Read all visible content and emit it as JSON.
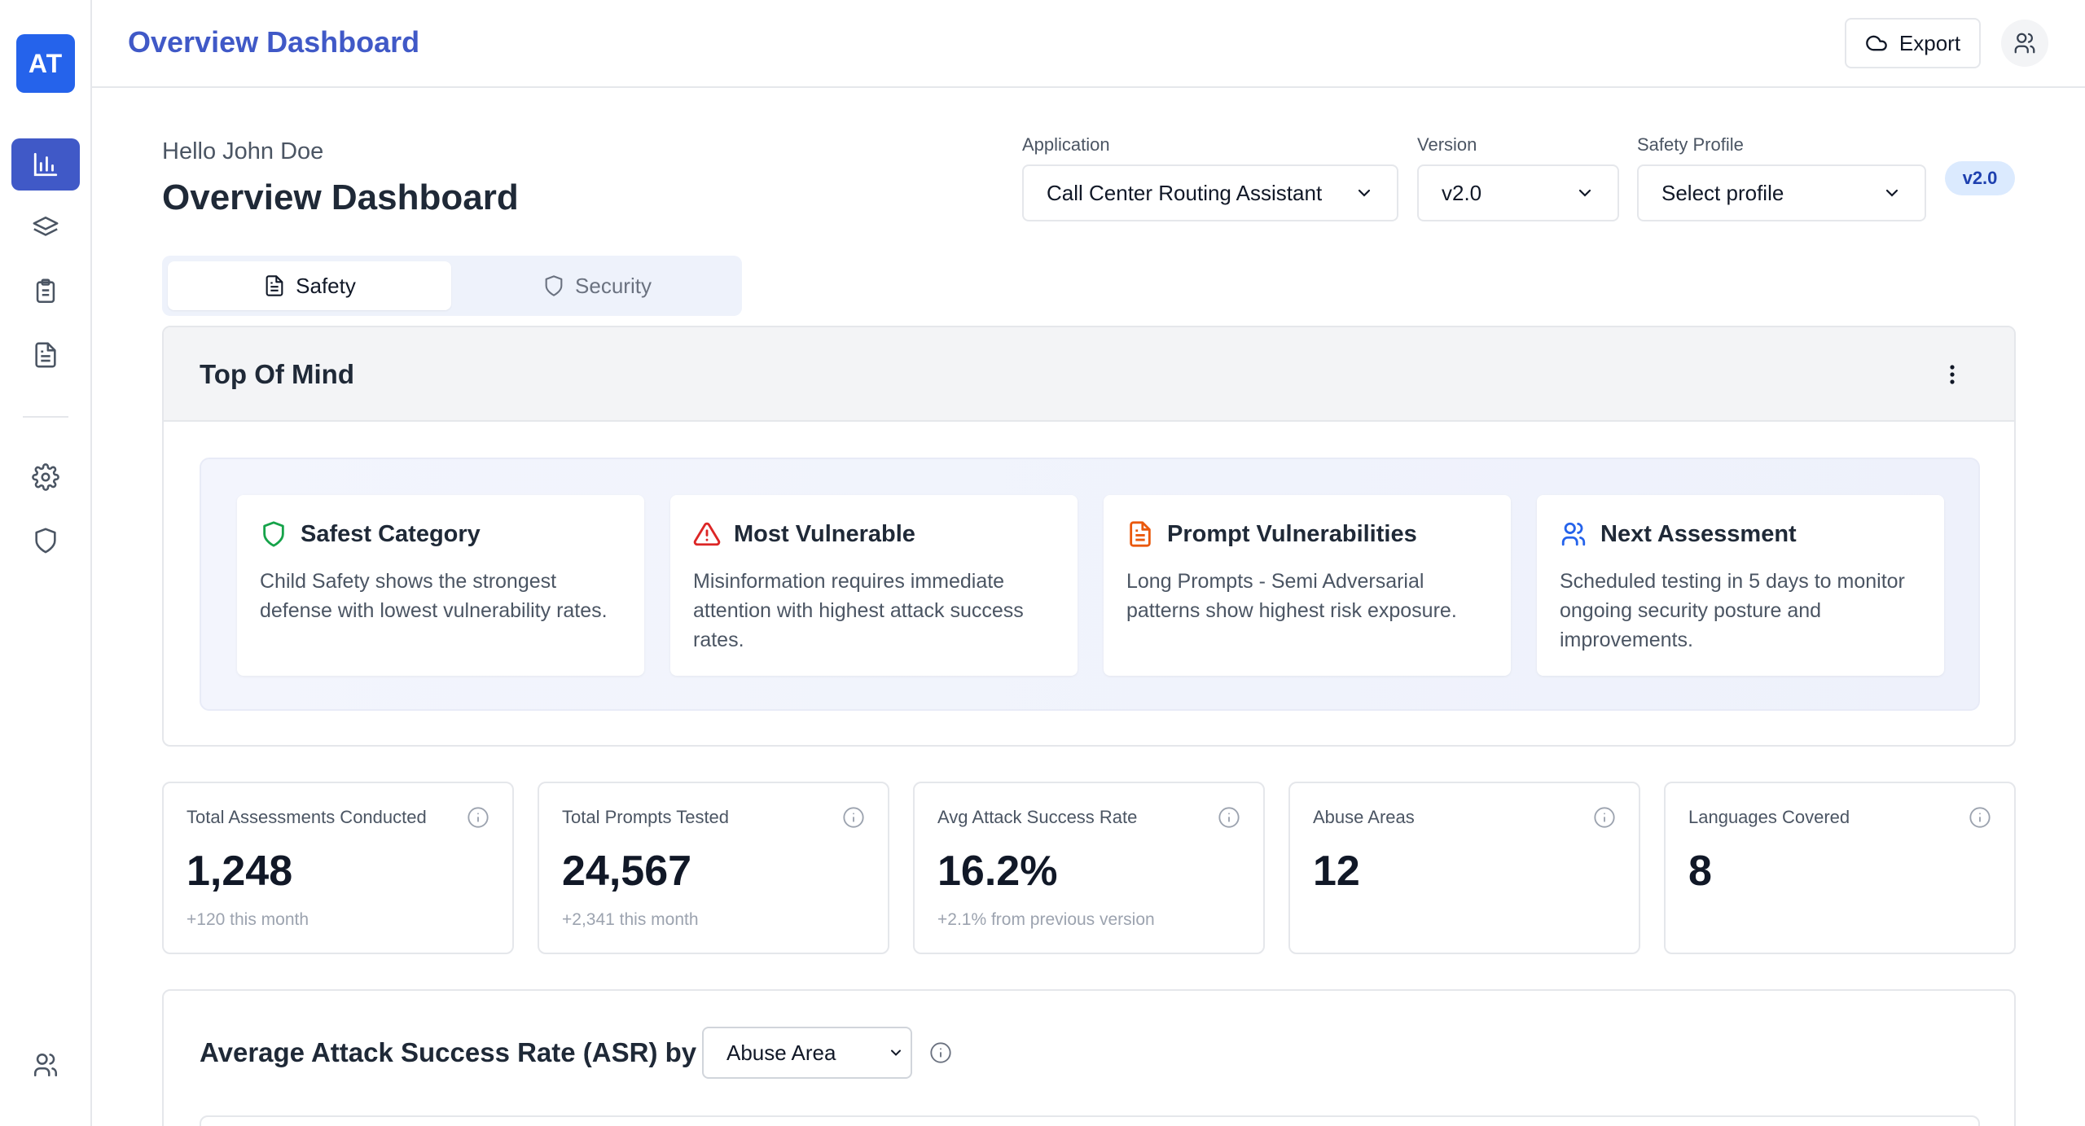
{
  "app": {
    "logo_text": "AT",
    "topbar_title": "Overview Dashboard",
    "export_label": "Export"
  },
  "sidebar": {
    "items": [
      {
        "name": "analytics",
        "icon": "bar-chart-icon",
        "active": true
      },
      {
        "name": "layers",
        "icon": "layers-icon",
        "active": false
      },
      {
        "name": "assessments",
        "icon": "clipboard-icon",
        "active": false
      },
      {
        "name": "reports",
        "icon": "document-icon",
        "active": false
      },
      {
        "name": "settings",
        "icon": "gear-icon",
        "active": false
      },
      {
        "name": "security",
        "icon": "shield-icon",
        "active": false
      },
      {
        "name": "users",
        "icon": "users-icon",
        "active": false
      }
    ]
  },
  "header": {
    "greeting": "Hello John Doe",
    "title": "Overview Dashboard"
  },
  "filters": {
    "application": {
      "label": "Application",
      "value": "Call Center Routing Assistant"
    },
    "version": {
      "label": "Version",
      "value": "v2.0"
    },
    "safety_profile": {
      "label": "Safety Profile",
      "value": "Select profile"
    },
    "version_badge": "v2.0"
  },
  "tabs": [
    {
      "label": "Safety",
      "icon": "document-icon",
      "active": true
    },
    {
      "label": "Security",
      "icon": "shield-icon",
      "active": false
    }
  ],
  "top_of_mind": {
    "title": "Top Of Mind",
    "cards": [
      {
        "title": "Safest Category",
        "icon": "shield-icon",
        "color": "#16a34a",
        "text": "Child Safety shows the strongest defense with lowest vulnerability rates."
      },
      {
        "title": "Most Vulnerable",
        "icon": "warning-icon",
        "color": "#dc2626",
        "text": "Misinformation requires immediate attention with highest attack success rates."
      },
      {
        "title": "Prompt Vulnerabilities",
        "icon": "document-icon",
        "color": "#ea580c",
        "text": "Long Prompts - Semi Adversarial patterns show highest risk exposure."
      },
      {
        "title": "Next Assessment",
        "icon": "users-icon",
        "color": "#2563eb",
        "text": "Scheduled testing in 5 days to monitor ongoing security posture and improvements."
      }
    ]
  },
  "stats": [
    {
      "label": "Total Assessments Conducted",
      "value": "1,248",
      "sub": "+120 this month"
    },
    {
      "label": "Total Prompts Tested",
      "value": "24,567",
      "sub": "+2,341 this month"
    },
    {
      "label": "Avg Attack Success Rate",
      "value": "16.2%",
      "sub": "+2.1% from previous version"
    },
    {
      "label": "Abuse Areas",
      "value": "12",
      "sub": ""
    },
    {
      "label": "Languages Covered",
      "value": "8",
      "sub": ""
    }
  ],
  "asr": {
    "title": "Average Attack Success Rate (ASR) by",
    "select_value": "Abuse Area"
  },
  "colors": {
    "accent": "#4059c7",
    "logo": "#2563eb",
    "badge_bg": "#dbeafe",
    "badge_text": "#1e40af"
  }
}
